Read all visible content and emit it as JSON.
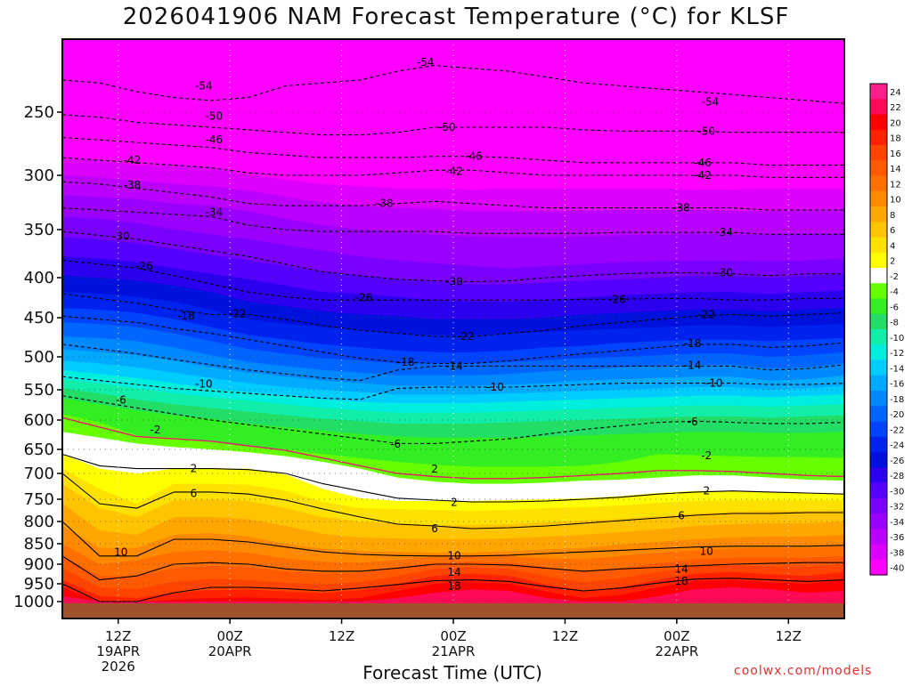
{
  "header": {
    "title": "2026041906 NAM Forecast Temperature (°C) for KLSF"
  },
  "footer": {
    "credit": "coolwx.com/models"
  },
  "colors": {
    "ground": "#a0522d",
    "frame": "#000000",
    "freezing_line": "#e0206a"
  },
  "chart_data": {
    "type": "heatmap",
    "title": "2026041906 NAM Forecast Temperature (°C) for KLSF",
    "xlabel": "Forecast Time (UTC)",
    "ylabel": "",
    "yaxis": {
      "unit": "hPa",
      "reversed": true,
      "range": [
        1000,
        200
      ],
      "ticks": [
        250,
        300,
        350,
        400,
        450,
        500,
        550,
        600,
        650,
        700,
        750,
        800,
        850,
        900,
        950,
        1000
      ]
    },
    "xaxis": {
      "range_hours": [
        0,
        84
      ],
      "ticks": [
        {
          "hour": 6,
          "label": "12Z",
          "sub1": "19APR",
          "sub2": "2026"
        },
        {
          "hour": 18,
          "label": "00Z",
          "sub1": "20APR",
          "sub2": ""
        },
        {
          "hour": 30,
          "label": "12Z",
          "sub1": "",
          "sub2": ""
        },
        {
          "hour": 42,
          "label": "00Z",
          "sub1": "21APR",
          "sub2": ""
        },
        {
          "hour": 54,
          "label": "12Z",
          "sub1": "",
          "sub2": ""
        },
        {
          "hour": 66,
          "label": "00Z",
          "sub1": "22APR",
          "sub2": ""
        },
        {
          "hour": 78,
          "label": "12Z",
          "sub1": "",
          "sub2": ""
        }
      ]
    },
    "colorbar": {
      "levels": [
        24,
        22,
        20,
        18,
        16,
        14,
        12,
        10,
        8,
        6,
        4,
        2,
        -2,
        -4,
        -6,
        -8,
        -10,
        -12,
        -14,
        -16,
        -18,
        -20,
        -22,
        -24,
        -26,
        -28,
        -30,
        -32,
        -34,
        -36,
        -38,
        -40
      ],
      "colors": [
        "#ff1f8c",
        "#ff0a56",
        "#ff0000",
        "#ff2200",
        "#ff4400",
        "#ff5a00",
        "#ff7000",
        "#ff8a00",
        "#ffa600",
        "#ffc400",
        "#ffe100",
        "#ffff00",
        "#ffffff",
        "#66ff00",
        "#33ee22",
        "#22dd66",
        "#11eeaa",
        "#00eedd",
        "#00ccff",
        "#00aaff",
        "#0088ff",
        "#0066ff",
        "#0044ff",
        "#0022ee",
        "#0011dd",
        "#2a00ee",
        "#5500ff",
        "#7a00ff",
        "#9b00ff",
        "#bb00ff",
        "#dd00ff",
        "#ff00ff"
      ]
    },
    "isotherm_labels": [
      {
        "value": "-54",
        "hour": 15.2,
        "p": 232
      },
      {
        "value": "-54",
        "hour": 39.0,
        "p": 216
      },
      {
        "value": "-54",
        "hour": 69.6,
        "p": 243
      },
      {
        "value": "-50",
        "hour": 16.3,
        "p": 253
      },
      {
        "value": "-50",
        "hour": 41.3,
        "p": 262
      },
      {
        "value": "-50",
        "hour": 69.2,
        "p": 265
      },
      {
        "value": "-46",
        "hour": 16.3,
        "p": 272
      },
      {
        "value": "-46",
        "hour": 44.2,
        "p": 285
      },
      {
        "value": "-46",
        "hour": 68.8,
        "p": 290
      },
      {
        "value": "-42",
        "hour": 7.5,
        "p": 288
      },
      {
        "value": "-42",
        "hour": 42.1,
        "p": 297
      },
      {
        "value": "-42",
        "hour": 68.8,
        "p": 300
      },
      {
        "value": "-38",
        "hour": 7.5,
        "p": 309
      },
      {
        "value": "-38",
        "hour": 34.6,
        "p": 326
      },
      {
        "value": "-38",
        "hour": 66.5,
        "p": 330
      },
      {
        "value": "-34",
        "hour": 16.3,
        "p": 334
      },
      {
        "value": "-34",
        "hour": 71.1,
        "p": 353
      },
      {
        "value": "-30",
        "hour": 6.3,
        "p": 357
      },
      {
        "value": "-30",
        "hour": 42.1,
        "p": 405
      },
      {
        "value": "-30",
        "hour": 71.1,
        "p": 395
      },
      {
        "value": "-26",
        "hour": 8.8,
        "p": 388
      },
      {
        "value": "-26",
        "hour": 32.4,
        "p": 425
      },
      {
        "value": "-26",
        "hour": 59.6,
        "p": 427
      },
      {
        "value": "-22",
        "hour": 18.8,
        "p": 445
      },
      {
        "value": "-22",
        "hour": 43.3,
        "p": 474
      },
      {
        "value": "-22",
        "hour": 69.2,
        "p": 446
      },
      {
        "value": "-18",
        "hour": 13.3,
        "p": 448
      },
      {
        "value": "-18",
        "hour": 36.9,
        "p": 508
      },
      {
        "value": "-18",
        "hour": 67.7,
        "p": 483
      },
      {
        "value": "-14",
        "hour": 42.1,
        "p": 514
      },
      {
        "value": "-14",
        "hour": 67.7,
        "p": 513
      },
      {
        "value": "-10",
        "hour": 15.2,
        "p": 541
      },
      {
        "value": "-10",
        "hour": 46.5,
        "p": 546
      },
      {
        "value": "-10",
        "hour": 70.0,
        "p": 540
      },
      {
        "value": "-6",
        "hour": 6.3,
        "p": 567
      },
      {
        "value": "-6",
        "hour": 35.8,
        "p": 641
      },
      {
        "value": "-6",
        "hour": 67.7,
        "p": 603
      },
      {
        "value": "-2",
        "hour": 10.0,
        "p": 617
      },
      {
        "value": "-2",
        "hour": 69.2,
        "p": 663
      },
      {
        "value": "2",
        "hour": 14.1,
        "p": 690
      },
      {
        "value": "2",
        "hour": 40.0,
        "p": 691
      },
      {
        "value": "2",
        "hour": 42.1,
        "p": 757
      },
      {
        "value": "2",
        "hour": 69.2,
        "p": 734
      },
      {
        "value": "6",
        "hour": 14.1,
        "p": 739
      },
      {
        "value": "6",
        "hour": 40.0,
        "p": 816
      },
      {
        "value": "6",
        "hour": 66.5,
        "p": 787
      },
      {
        "value": "10",
        "hour": 6.3,
        "p": 871
      },
      {
        "value": "10",
        "hour": 42.1,
        "p": 879
      },
      {
        "value": "10",
        "hour": 69.2,
        "p": 869
      },
      {
        "value": "14",
        "hour": 42.1,
        "p": 920
      },
      {
        "value": "14",
        "hour": 66.5,
        "p": 913
      },
      {
        "value": "18",
        "hour": 42.1,
        "p": 956
      },
      {
        "value": "18",
        "hour": 66.5,
        "p": 943
      }
    ]
  }
}
